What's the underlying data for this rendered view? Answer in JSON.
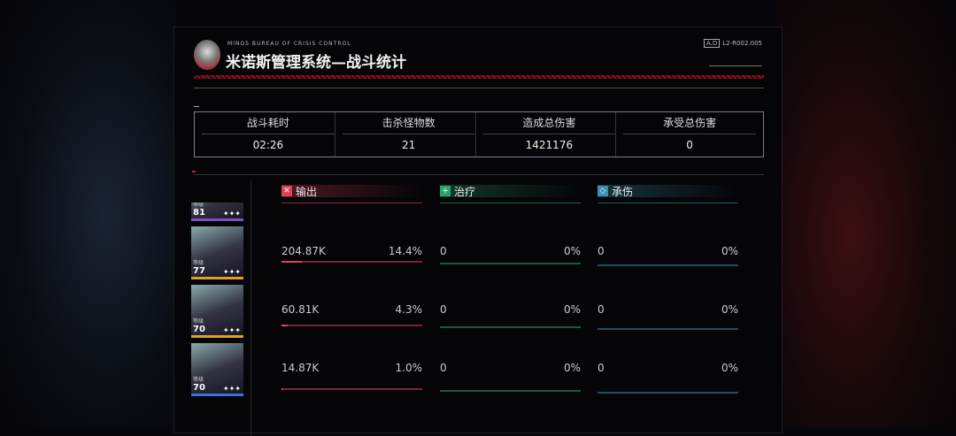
{
  "header": {
    "org": "MINOS BUREAU OF CRISIS CONTROL",
    "title": "米诺斯管理系统—战斗统计",
    "badge": "A.D",
    "code": "L2-R002.005"
  },
  "summary": [
    {
      "label": "战斗耗时",
      "value": "02:26"
    },
    {
      "label": "击杀怪物数",
      "value": "21"
    },
    {
      "label": "造成总伤害",
      "value": "1421176"
    },
    {
      "label": "承受总伤害",
      "value": "0"
    }
  ],
  "columns": [
    {
      "label": "输出",
      "icon": "sword-icon",
      "color": "#e0405a"
    },
    {
      "label": "治疗",
      "icon": "plus-icon",
      "color": "#2fa070"
    },
    {
      "label": "承伤",
      "icon": "shield-icon",
      "color": "#3a90b0"
    }
  ],
  "characters": [
    {
      "level_label": "等级",
      "level": "81",
      "stars": "✦✦✦",
      "frame": "#8050c0",
      "stats": []
    },
    {
      "level_label": "等级",
      "level": "77",
      "stars": "✦✦✦",
      "frame": "#e0a020",
      "stats": [
        {
          "value": "204.87K",
          "pct": "14.4%",
          "fill": 14.4
        },
        {
          "value": "0",
          "pct": "0%",
          "fill": 0
        },
        {
          "value": "0",
          "pct": "0%",
          "fill": 0
        }
      ]
    },
    {
      "level_label": "等级",
      "level": "70",
      "stars": "✦✦✦",
      "frame": "#e0a020",
      "stats": [
        {
          "value": "60.81K",
          "pct": "4.3%",
          "fill": 4.3
        },
        {
          "value": "0",
          "pct": "0%",
          "fill": 0
        },
        {
          "value": "0",
          "pct": "0%",
          "fill": 0
        }
      ]
    },
    {
      "level_label": "等级",
      "level": "70",
      "stars": "✦✦✦",
      "frame": "#4070d0",
      "stats": [
        {
          "value": "14.87K",
          "pct": "1.0%",
          "fill": 1.0
        },
        {
          "value": "0",
          "pct": "0%",
          "fill": 0
        },
        {
          "value": "0",
          "pct": "0%",
          "fill": 0
        }
      ]
    }
  ]
}
